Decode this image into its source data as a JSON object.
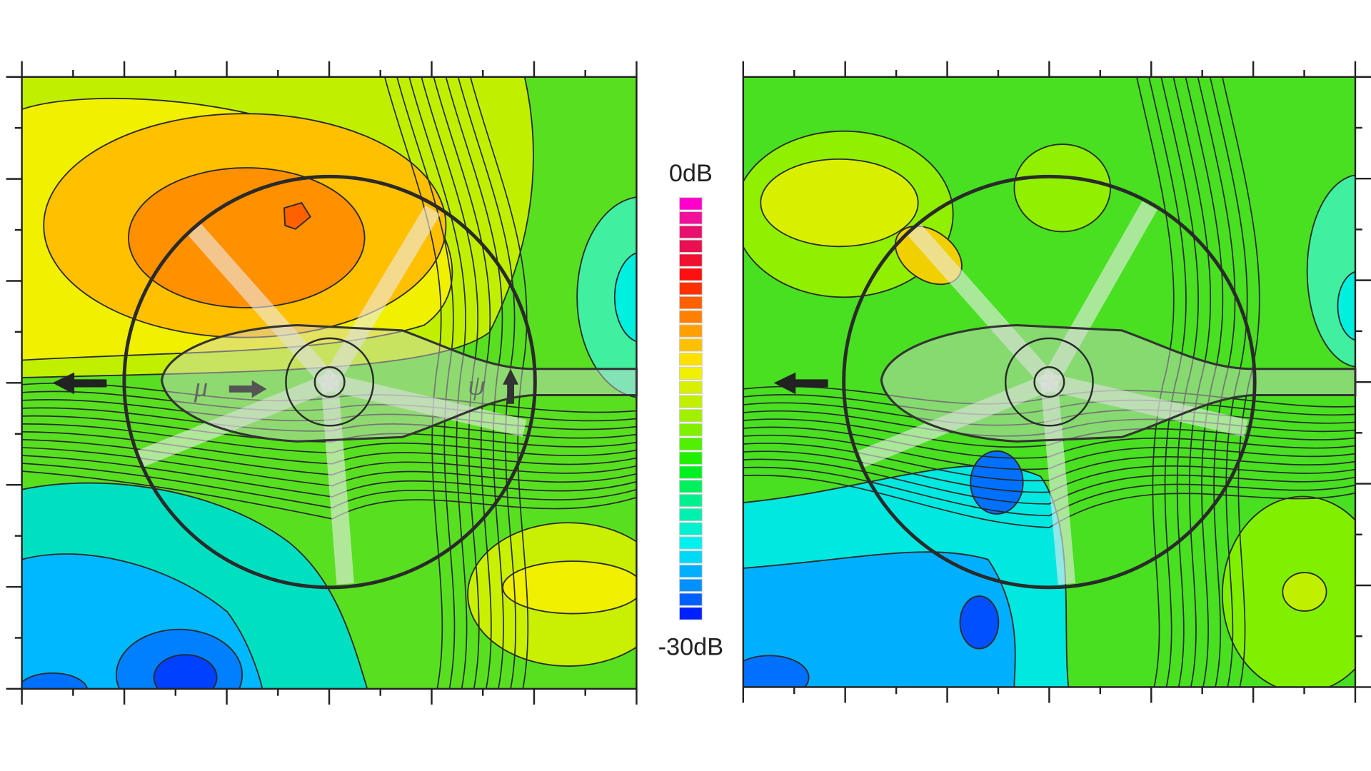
{
  "chart_data": {
    "type": "colorbar",
    "ylim": [
      -30,
      0
    ],
    "yticks": [
      {
        "value": 0,
        "label": "0dB"
      },
      {
        "value": -30,
        "label": "-30dB"
      }
    ],
    "colors": [
      "#ff00cc",
      "#f0109a",
      "#e8106e",
      "#e81050",
      "#f01030",
      "#ff1010",
      "#ff3000",
      "#ff6000",
      "#ff8000",
      "#ffa000",
      "#ffc000",
      "#ffe000",
      "#f0f000",
      "#d8f000",
      "#c0f000",
      "#a0f000",
      "#80f000",
      "#50f000",
      "#20f000",
      "#00f020",
      "#00f060",
      "#00f090",
      "#00f0b0",
      "#00f0d0",
      "#00f0f0",
      "#00d8f8",
      "#00b0ff",
      "#0090ff",
      "#0060ff",
      "#0020ff"
    ],
    "annotations": [
      "μ",
      "ψ"
    ]
  }
}
